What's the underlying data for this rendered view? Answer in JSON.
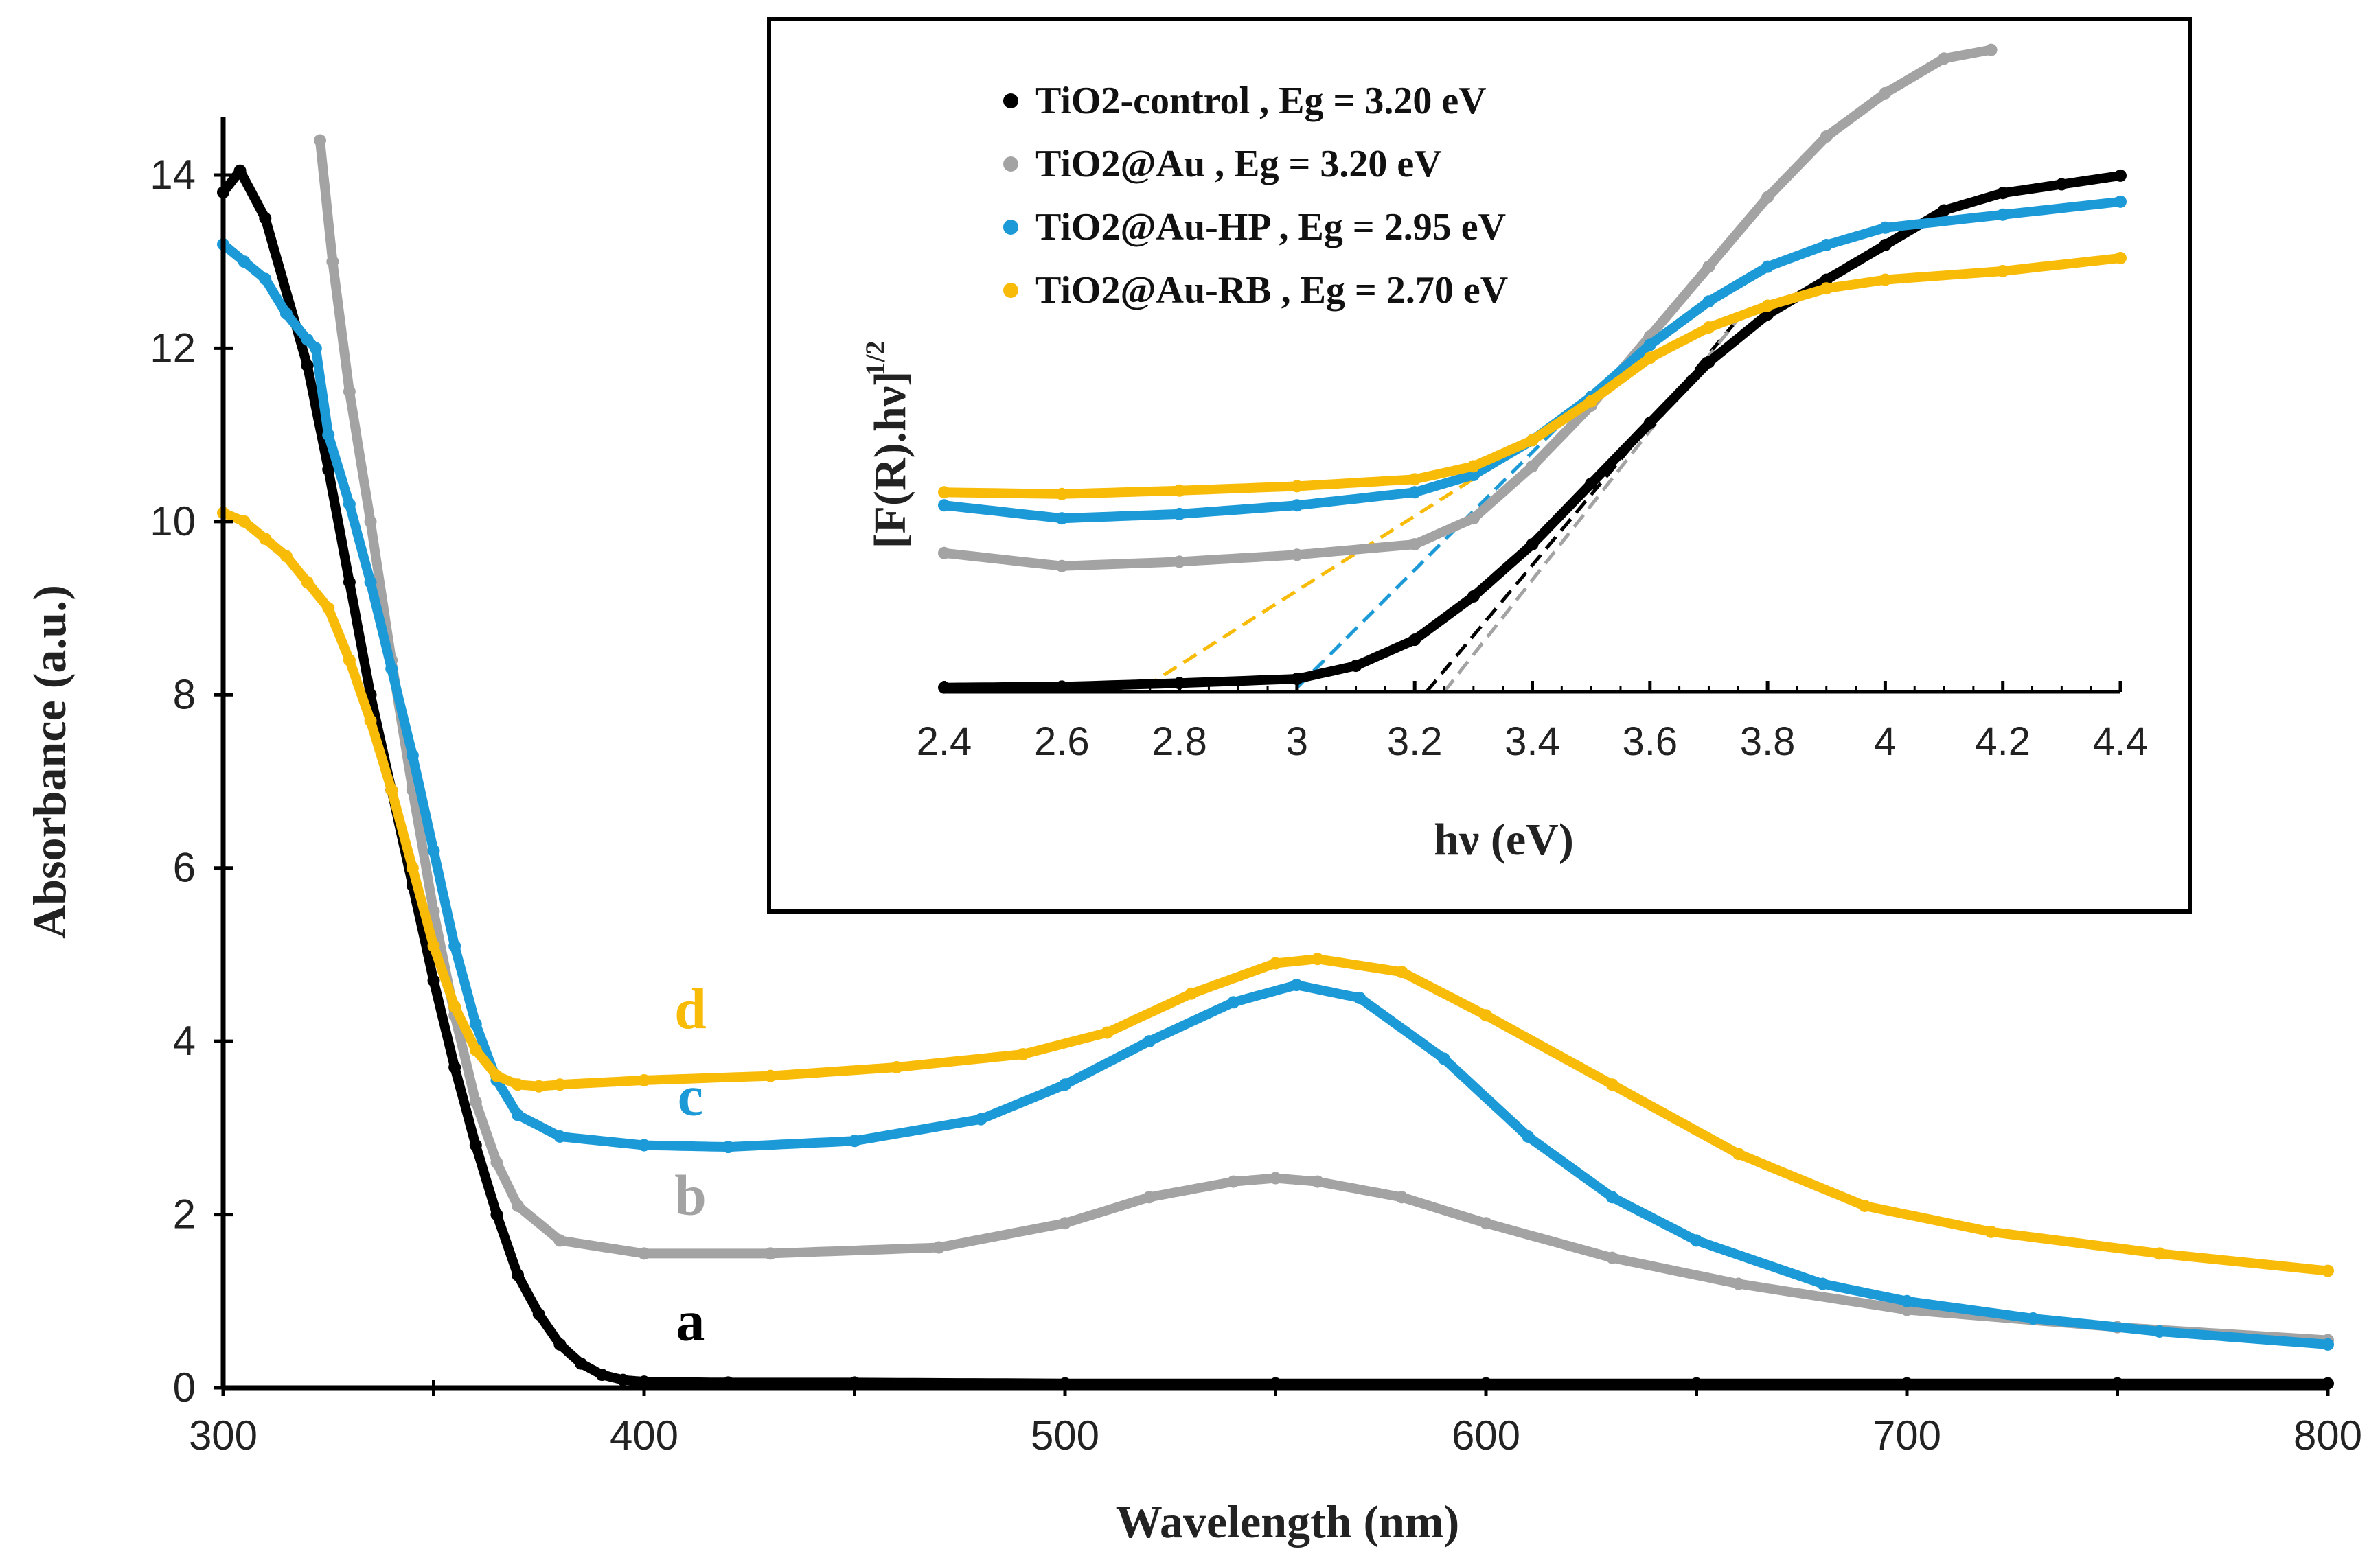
{
  "colors": {
    "control": "#000000",
    "au": "#a3a3a3",
    "hp": "#1b9ad7",
    "rb": "#f8bb08"
  },
  "chart_data": [
    {
      "id": "main",
      "type": "line",
      "title": "",
      "xlabel": "Wavelength (nm)",
      "ylabel": "Absorbance (a.u.)",
      "xlim": [
        300,
        800
      ],
      "ylim": [
        0,
        14
      ],
      "xticks": [
        300,
        400,
        500,
        600,
        700,
        800
      ],
      "yticks": [
        0,
        2,
        4,
        6,
        8,
        10,
        12,
        14
      ],
      "grid": false,
      "curve_labels": [
        {
          "text": "a",
          "color_key": "control",
          "x": 411,
          "y": 0.55
        },
        {
          "text": "b",
          "color_key": "au",
          "x": 411,
          "y": 2.0
        },
        {
          "text": "c",
          "color_key": "hp",
          "x": 411,
          "y": 3.15
        },
        {
          "text": "d",
          "color_key": "rb",
          "x": 411,
          "y": 4.15
        }
      ],
      "series": [
        {
          "name": "a",
          "color_key": "control",
          "x": [
            300,
            304,
            310,
            320,
            325,
            330,
            335,
            340,
            345,
            350,
            355,
            360,
            365,
            370,
            375,
            380,
            385,
            390,
            395,
            400,
            420,
            450,
            500,
            550,
            600,
            650,
            700,
            750,
            800
          ],
          "y": [
            13.8,
            14.05,
            13.5,
            11.8,
            10.6,
            9.3,
            8.0,
            6.9,
            5.8,
            4.7,
            3.7,
            2.8,
            2.0,
            1.3,
            0.85,
            0.5,
            0.28,
            0.15,
            0.09,
            0.07,
            0.06,
            0.06,
            0.05,
            0.05,
            0.05,
            0.05,
            0.05,
            0.05,
            0.05
          ]
        },
        {
          "name": "b",
          "color_key": "au",
          "x": [
            323,
            326,
            330,
            335,
            340,
            345,
            350,
            355,
            360,
            365,
            370,
            380,
            400,
            430,
            470,
            500,
            520,
            540,
            550,
            560,
            580,
            600,
            630,
            660,
            700,
            750,
            800
          ],
          "y": [
            14.4,
            13.0,
            11.5,
            10.0,
            8.4,
            6.9,
            5.5,
            4.3,
            3.3,
            2.6,
            2.1,
            1.7,
            1.55,
            1.55,
            1.62,
            1.9,
            2.2,
            2.38,
            2.42,
            2.38,
            2.2,
            1.9,
            1.5,
            1.2,
            0.9,
            0.7,
            0.55
          ]
        },
        {
          "name": "c",
          "color_key": "hp",
          "x": [
            300,
            305,
            310,
            315,
            320,
            322,
            325,
            330,
            335,
            340,
            345,
            350,
            355,
            360,
            365,
            370,
            380,
            400,
            420,
            450,
            480,
            500,
            520,
            540,
            555,
            570,
            590,
            610,
            630,
            650,
            680,
            700,
            730,
            760,
            800
          ],
          "y": [
            13.2,
            13.0,
            12.8,
            12.4,
            12.1,
            12.0,
            11.0,
            10.2,
            9.3,
            8.3,
            7.3,
            6.2,
            5.1,
            4.2,
            3.55,
            3.15,
            2.9,
            2.8,
            2.78,
            2.85,
            3.1,
            3.5,
            4.0,
            4.45,
            4.65,
            4.5,
            3.8,
            2.9,
            2.2,
            1.7,
            1.2,
            1.0,
            0.8,
            0.65,
            0.5
          ]
        },
        {
          "name": "d",
          "color_key": "rb",
          "x": [
            300,
            305,
            310,
            315,
            320,
            325,
            330,
            335,
            340,
            345,
            350,
            355,
            360,
            365,
            370,
            375,
            380,
            400,
            430,
            460,
            490,
            510,
            530,
            550,
            560,
            580,
            600,
            630,
            660,
            690,
            720,
            760,
            800
          ],
          "y": [
            10.1,
            10.0,
            9.8,
            9.6,
            9.3,
            9.0,
            8.4,
            7.7,
            6.9,
            6.0,
            5.1,
            4.4,
            3.9,
            3.6,
            3.5,
            3.48,
            3.5,
            3.55,
            3.6,
            3.7,
            3.85,
            4.1,
            4.55,
            4.9,
            4.95,
            4.8,
            4.3,
            3.5,
            2.7,
            2.1,
            1.8,
            1.55,
            1.35
          ]
        }
      ]
    },
    {
      "id": "inset",
      "type": "line",
      "title": "",
      "xlabel": "hν (eV)",
      "ylabel": "[F(R).hν]",
      "ylabel_superscript": "1/2",
      "xlim": [
        2.4,
        4.4
      ],
      "ylim": [
        8.2,
        15.7
      ],
      "xticks": [
        2.4,
        2.6,
        2.8,
        3,
        3.2,
        3.4,
        3.6,
        3.8,
        4,
        4.2,
        4.4
      ],
      "yticks": [],
      "grid": false,
      "legend_placement": "top-left",
      "series": [
        {
          "name": "TiO2-control , Eg = 3.20 eV",
          "color_key": "control",
          "x": [
            2.4,
            2.6,
            2.8,
            3.0,
            3.1,
            3.2,
            3.3,
            3.4,
            3.5,
            3.6,
            3.7,
            3.8,
            3.9,
            4.0,
            4.1,
            4.2,
            4.3,
            4.4
          ],
          "y": [
            8.25,
            8.26,
            8.3,
            8.35,
            8.5,
            8.8,
            9.3,
            9.9,
            10.6,
            11.3,
            12.0,
            12.55,
            12.95,
            13.35,
            13.75,
            13.95,
            14.05,
            14.15
          ]
        },
        {
          "name": "TiO2@Au , Eg = 3.20 eV",
          "color_key": "au",
          "x": [
            2.4,
            2.6,
            2.8,
            3.0,
            3.2,
            3.3,
            3.4,
            3.5,
            3.6,
            3.7,
            3.8,
            3.9,
            4.0,
            4.1,
            4.18
          ],
          "y": [
            9.8,
            9.65,
            9.7,
            9.78,
            9.9,
            10.2,
            10.8,
            11.5,
            12.3,
            13.1,
            13.9,
            14.6,
            15.1,
            15.5,
            15.6
          ]
        },
        {
          "name": "TiO2@Au-HP , Eg = 2.95 eV",
          "color_key": "hp",
          "x": [
            2.4,
            2.6,
            2.8,
            3.0,
            3.2,
            3.3,
            3.4,
            3.5,
            3.6,
            3.7,
            3.8,
            3.9,
            4.0,
            4.2,
            4.4
          ],
          "y": [
            10.35,
            10.2,
            10.25,
            10.35,
            10.5,
            10.7,
            11.1,
            11.6,
            12.2,
            12.7,
            13.1,
            13.35,
            13.55,
            13.7,
            13.85
          ]
        },
        {
          "name": "TiO2@Au-RB , Eg = 2.70 eV",
          "color_key": "rb",
          "x": [
            2.4,
            2.6,
            2.8,
            3.0,
            3.2,
            3.3,
            3.4,
            3.5,
            3.6,
            3.7,
            3.8,
            3.9,
            4.0,
            4.2,
            4.4
          ],
          "y": [
            10.5,
            10.48,
            10.52,
            10.57,
            10.65,
            10.8,
            11.1,
            11.55,
            12.05,
            12.4,
            12.65,
            12.85,
            12.95,
            13.05,
            13.2
          ]
        }
      ],
      "tangent_lines": [
        {
          "color_key": "control",
          "x": [
            3.22,
            3.75
          ],
          "y": [
            8.2,
            12.5
          ]
        },
        {
          "color_key": "au",
          "x": [
            3.25,
            3.75
          ],
          "y": [
            8.2,
            12.5
          ]
        },
        {
          "color_key": "hp",
          "x": [
            3.0,
            3.45
          ],
          "y": [
            8.25,
            11.3
          ]
        },
        {
          "color_key": "rb",
          "x": [
            2.74,
            3.45
          ],
          "y": [
            8.25,
            11.3
          ]
        }
      ]
    }
  ]
}
